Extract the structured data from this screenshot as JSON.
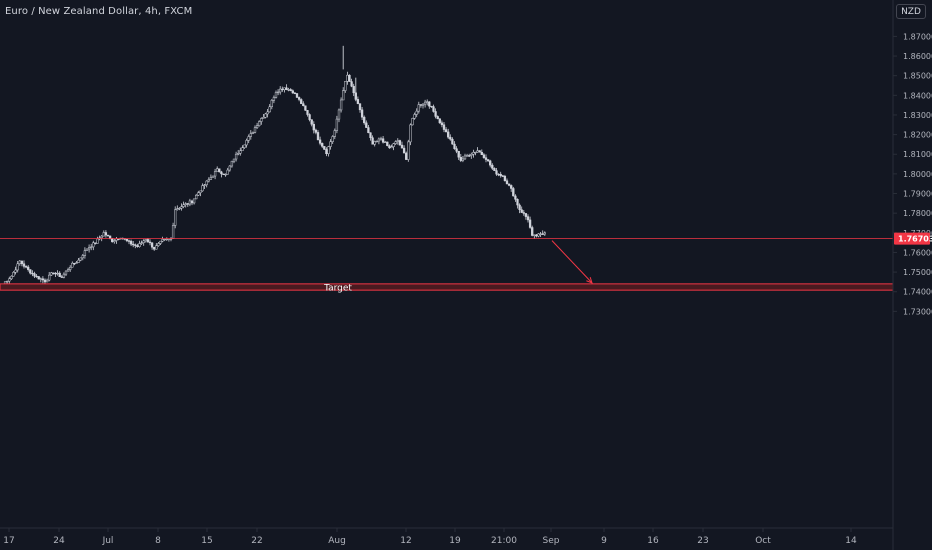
{
  "header": {
    "title": "Euro / New Zealand Dollar, 4h, FXCM"
  },
  "price_scale": {
    "currency_label": "NZD"
  },
  "colors": {
    "background": "#131722",
    "candle": "#d1d4dc",
    "axis_text": "#b2b5be",
    "level_line": "#f23645",
    "price_tag": "#f23645",
    "target_fill": "#4a1a20",
    "arrow": "#f23645"
  },
  "annotations": {
    "target_label": "Target",
    "current_price_label": "1.76703"
  },
  "chart_data": {
    "type": "candlestick",
    "title": "Euro / New Zealand Dollar, 4h, FXCM",
    "xlabel": "",
    "ylabel": "",
    "ylim": [
      1.7242,
      1.8752
    ],
    "y_ticks": [
      "1.87000",
      "1.86000",
      "1.85000",
      "1.84000",
      "1.83000",
      "1.82000",
      "1.81000",
      "1.80000",
      "1.79000",
      "1.78000",
      "1.77000",
      "1.76000",
      "1.75000",
      "1.74000",
      "1.73000"
    ],
    "x_ticks": [
      "17",
      "24",
      "Jul",
      "8",
      "15",
      "22",
      "Aug",
      "12",
      "19",
      "21:00",
      "Sep",
      "9",
      "16",
      "23",
      "Oct",
      "14"
    ],
    "price_path": [
      [
        0,
        1.744
      ],
      [
        2,
        1.748
      ],
      [
        4,
        1.7555
      ],
      [
        6,
        1.751
      ],
      [
        8,
        1.7475
      ],
      [
        10,
        1.7455
      ],
      [
        12,
        1.75
      ],
      [
        14,
        1.7475
      ],
      [
        16,
        1.753
      ],
      [
        18,
        1.756
      ],
      [
        20,
        1.762
      ],
      [
        22,
        1.765
      ],
      [
        24,
        1.77
      ],
      [
        26,
        1.766
      ],
      [
        28,
        1.768
      ],
      [
        30,
        1.765
      ],
      [
        32,
        1.763
      ],
      [
        34,
        1.767
      ],
      [
        36,
        1.762
      ],
      [
        38,
        1.766
      ],
      [
        40,
        1.767
      ],
      [
        41,
        1.782
      ],
      [
        43,
        1.784
      ],
      [
        45,
        1.786
      ],
      [
        47,
        1.792
      ],
      [
        49,
        1.797
      ],
      [
        51,
        1.802
      ],
      [
        53,
        1.7995
      ],
      [
        55,
        1.808
      ],
      [
        57,
        1.814
      ],
      [
        59,
        1.82
      ],
      [
        61,
        1.827
      ],
      [
        63,
        1.832
      ],
      [
        65,
        1.842
      ],
      [
        67,
        1.844
      ],
      [
        69,
        1.842
      ],
      [
        71,
        1.836
      ],
      [
        73,
        1.828
      ],
      [
        75,
        1.818
      ],
      [
        77,
        1.811
      ],
      [
        79,
        1.822
      ],
      [
        81,
        1.843
      ],
      [
        82,
        1.85
      ],
      [
        83,
        1.844
      ],
      [
        84,
        1.838
      ],
      [
        86,
        1.826
      ],
      [
        88,
        1.815
      ],
      [
        90,
        1.818
      ],
      [
        92,
        1.813
      ],
      [
        94,
        1.817
      ],
      [
        96,
        1.808
      ],
      [
        97,
        1.825
      ],
      [
        99,
        1.835
      ],
      [
        101,
        1.837
      ],
      [
        103,
        1.83
      ],
      [
        105,
        1.823
      ],
      [
        107,
        1.815
      ],
      [
        109,
        1.807
      ],
      [
        111,
        1.81
      ],
      [
        113,
        1.812
      ],
      [
        115,
        1.808
      ],
      [
        117,
        1.801
      ],
      [
        119,
        1.799
      ],
      [
        121,
        1.792
      ],
      [
        123,
        1.782
      ],
      [
        125,
        1.777
      ],
      [
        126,
        1.768
      ],
      [
        128,
        1.769
      ],
      [
        129,
        1.77
      ]
    ],
    "spikes": [
      {
        "x": 81,
        "high": 1.8652
      },
      {
        "x": 84,
        "high": 1.849
      }
    ],
    "horizontal_level": {
      "price": 1.76703,
      "label": "1.76703"
    },
    "target_zone": {
      "low": 1.7408,
      "high": 1.744,
      "label": "Target"
    },
    "projection_arrow": {
      "from_price": 1.766,
      "to_price": 1.7445
    },
    "legend": "none",
    "grid": false
  }
}
